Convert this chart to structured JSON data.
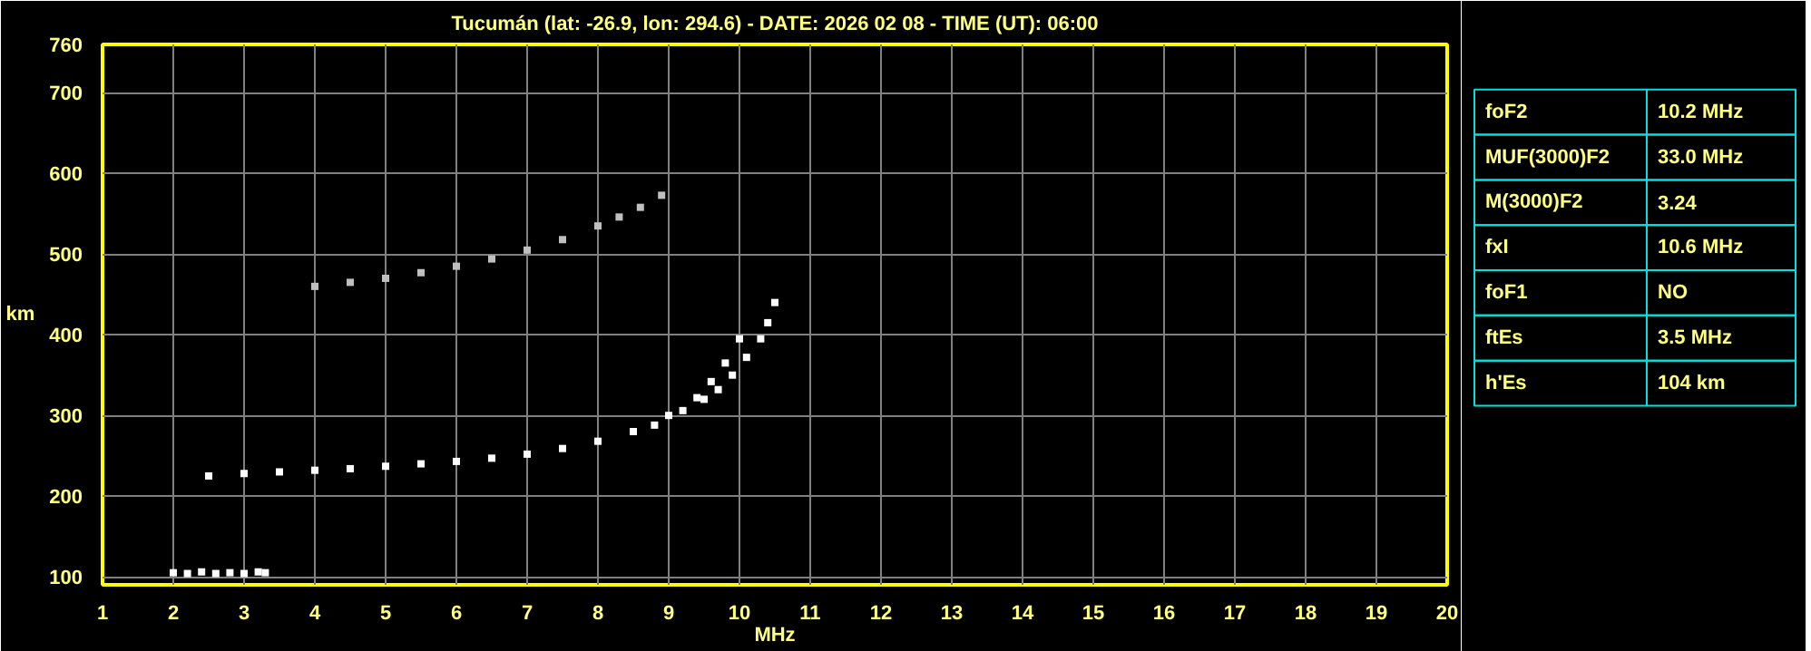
{
  "chart_data": [
    {
      "type": "scatter",
      "title": "Tucumán (lat: -26.9, lon: 294.6) - DATE: 2026 02 08 - TIME (UT): 06:00",
      "xlabel": "MHz",
      "ylabel": "km",
      "xlim": [
        1,
        20
      ],
      "ylim": [
        90,
        760
      ],
      "xticks": [
        1,
        2,
        3,
        4,
        5,
        6,
        7,
        8,
        9,
        10,
        11,
        12,
        13,
        14,
        15,
        16,
        17,
        18,
        19,
        20
      ],
      "yticks": [
        100,
        200,
        300,
        400,
        500,
        600,
        700,
        760
      ],
      "grid": true,
      "marker": "square",
      "series": [
        {
          "color": "#ffffff",
          "x": [
            2.5,
            3,
            3.5,
            4,
            4.5,
            5,
            5.5,
            6,
            6.5,
            7,
            7.5,
            8,
            8.5,
            8.8,
            9,
            9.2,
            9.5,
            9.7,
            9.9,
            10.1,
            10.3,
            10.4,
            10.5
          ],
          "values": [
            225,
            228,
            230,
            232,
            234,
            237,
            240,
            243,
            247,
            252,
            259,
            268,
            280,
            288,
            300,
            306,
            320,
            332,
            350,
            372,
            395,
            415,
            440
          ]
        },
        {
          "color": "#ffffff",
          "x": [
            9.4,
            9.6,
            9.8,
            10.0
          ],
          "values": [
            322,
            342,
            365,
            395
          ]
        },
        {
          "color": "#bfbfbf",
          "x": [
            4.0,
            4.5,
            5,
            5.5,
            6,
            6.5,
            7,
            7.5,
            8,
            8.3,
            8.6,
            8.9
          ],
          "values": [
            460,
            465,
            470,
            477,
            485,
            494,
            505,
            518,
            535,
            546,
            558,
            573
          ]
        },
        {
          "color": "#ffffff",
          "x": [
            2.0,
            2.2,
            2.4,
            2.6,
            2.8,
            3.0,
            3.2,
            3.3
          ],
          "values": [
            105,
            104,
            106,
            104,
            105,
            104,
            106,
            105
          ]
        }
      ]
    },
    {
      "type": "other",
      "annotations": [
        "foF2",
        "10.2 MHz",
        "MUF(3000)F2",
        "33.0 MHz",
        "M(3000)F2",
        "3.24",
        "fxI",
        "10.6 MHz",
        "foF1",
        "NO",
        "ftEs",
        "3.5 MHz",
        "h'Es",
        "104 km"
      ]
    }
  ]
}
